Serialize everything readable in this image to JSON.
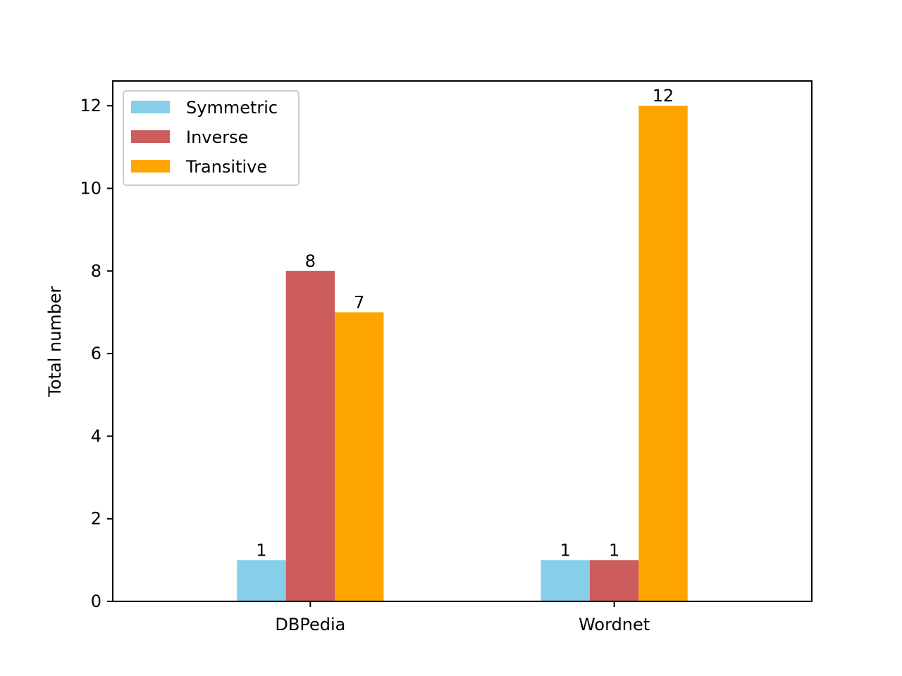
{
  "chart_data": {
    "type": "bar",
    "title": "",
    "xlabel": "",
    "ylabel": "Total number",
    "categories": [
      "DBPedia",
      "Wordnet"
    ],
    "series": [
      {
        "name": "Symmetric",
        "values": [
          1,
          1
        ],
        "color": "#87ceeb"
      },
      {
        "name": "Inverse",
        "values": [
          8,
          1
        ],
        "color": "#cd5c5c"
      },
      {
        "name": "Transitive",
        "values": [
          7,
          12
        ],
        "color": "#ffa500"
      }
    ],
    "ylim": [
      0,
      12.6
    ],
    "yticks": [
      0,
      2,
      4,
      6,
      8,
      10,
      12
    ],
    "legend_position": "top-left",
    "grid": false,
    "data_labels": true
  }
}
